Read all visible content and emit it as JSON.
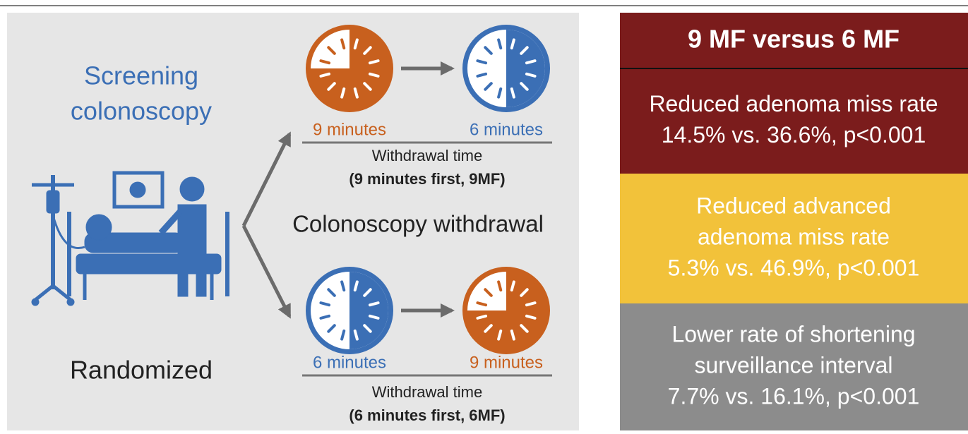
{
  "left": {
    "screening": [
      "Screening",
      "colonoscopy"
    ],
    "randomized": "Randomized",
    "withdrawal": "Colonoscopy withdrawal",
    "top_arm": {
      "first_label": "9 minutes",
      "second_label": "6 minutes",
      "caption": "Withdrawal time",
      "group": "(9 minutes first, 9MF)"
    },
    "bottom_arm": {
      "first_label": "6 minutes",
      "second_label": "9 minutes",
      "caption": "Withdrawal time",
      "group": "(6 minutes first, 6MF)"
    }
  },
  "right": {
    "title": "9 MF versus 6 MF",
    "results": [
      {
        "lines": [
          "Reduced adenoma miss rate",
          "14.5% vs. 36.6%, p<0.001"
        ]
      },
      {
        "lines": [
          "Reduced advanced",
          "adenoma miss rate",
          "5.3% vs. 46.9%, p<0.001"
        ]
      },
      {
        "lines": [
          "Lower rate of shortening",
          "surveillance interval",
          "7.7% vs. 16.1%, p<0.001"
        ]
      }
    ]
  }
}
